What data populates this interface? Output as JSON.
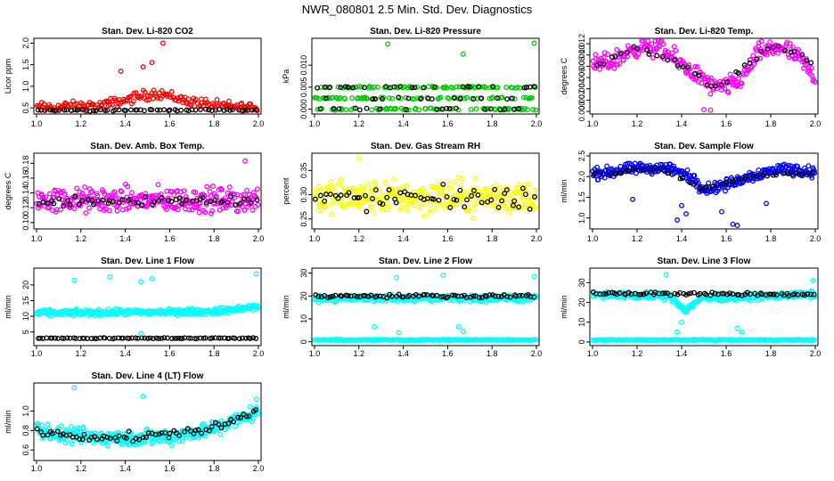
{
  "page_title": "NWR_080801  2.5 Min. Std. Dev. Diagnostics",
  "colors": {
    "red": "#ff0000",
    "green": "#00cc00",
    "magenta": "#ff00ff",
    "yellow": "#ffff00",
    "blue": "#0000ff",
    "cyan": "#00ffff",
    "black": "#000000"
  },
  "chart_data": [
    {
      "type": "scatter",
      "title": "Stan. Dev. Li-820 CO2",
      "ylabel": "Licor ppm",
      "color": "red",
      "xlim": [
        1.0,
        2.0
      ],
      "ylim": [
        0.42,
        2.05
      ],
      "xticks": [
        "1.0",
        "1.2",
        "1.4",
        "1.6",
        "1.8",
        "2.0"
      ],
      "yticks": [
        "0.5",
        "1.0",
        "1.5",
        "2.0"
      ],
      "ytick_values": [
        0.5,
        1.0,
        1.5,
        2.0
      ],
      "series": [
        {
          "name": "all",
          "color": "red",
          "baseline": [
            [
              1.0,
              0.5
            ],
            [
              1.3,
              0.55
            ],
            [
              1.45,
              0.75
            ],
            [
              1.55,
              0.85
            ],
            [
              1.65,
              0.7
            ],
            [
              1.8,
              0.55
            ],
            [
              2.0,
              0.5
            ]
          ],
          "spread": 0.18,
          "n": 180
        },
        {
          "name": "subset",
          "color": "black",
          "baseline": [
            [
              1.0,
              0.45
            ],
            [
              2.0,
              0.45
            ]
          ],
          "spread": 0.03,
          "n": 60
        }
      ],
      "outliers": [
        [
          1.57,
          2.0
        ],
        [
          1.52,
          1.55
        ],
        [
          1.48,
          1.45
        ],
        [
          1.38,
          1.35
        ]
      ]
    },
    {
      "type": "scatter",
      "title": "Stan. Dev. Li-820 Pressure",
      "ylabel": "kPa",
      "color": "green",
      "xlim": [
        1.0,
        2.0
      ],
      "ylim": [
        -0.0005,
        0.0155
      ],
      "xticks": [
        "1.0",
        "1.2",
        "1.4",
        "1.6",
        "1.8",
        "2.0"
      ],
      "yticks": [
        "0.000",
        "0.005",
        "0.010"
      ],
      "ytick_values": [
        0.0,
        0.005,
        0.01
      ],
      "series": [
        {
          "name": "all",
          "color": "green",
          "levels": [
            0.0,
            0.0025,
            0.005
          ],
          "n": 220
        },
        {
          "name": "subset",
          "color": "black",
          "levels": [
            0.0,
            0.0025,
            0.005
          ],
          "n": 60
        }
      ],
      "outliers": [
        [
          1.33,
          0.0148
        ],
        [
          1.67,
          0.0125
        ],
        [
          1.99,
          0.015
        ]
      ]
    },
    {
      "type": "scatter",
      "title": "Stan. Dev. Li-820 Temp.",
      "ylabel": "degrees C",
      "color": "magenta",
      "xlim": [
        1.0,
        2.0
      ],
      "ylim": [
        0.0,
        0.0125
      ],
      "xticks": [
        "1.0",
        "1.2",
        "1.4",
        "1.6",
        "1.8",
        "2.0"
      ],
      "yticks": [
        "0.000",
        "0.002",
        "0.004",
        "0.006",
        "0.008",
        "0.010",
        "0.012"
      ],
      "ytick_values": [
        0.0,
        0.002,
        0.004,
        0.006,
        0.008,
        0.01,
        0.012
      ],
      "series": [
        {
          "name": "all",
          "color": "magenta",
          "baseline": [
            [
              1.0,
              0.008
            ],
            [
              1.1,
              0.009
            ],
            [
              1.2,
              0.0115
            ],
            [
              1.3,
              0.0112
            ],
            [
              1.45,
              0.007
            ],
            [
              1.55,
              0.004
            ],
            [
              1.65,
              0.005
            ],
            [
              1.75,
              0.0105
            ],
            [
              1.85,
              0.0115
            ],
            [
              1.95,
              0.0085
            ],
            [
              2.0,
              0.006
            ]
          ],
          "spread": 0.0025,
          "n": 260
        },
        {
          "name": "subset",
          "color": "black",
          "baseline": [
            [
              1.0,
              0.008
            ],
            [
              1.2,
              0.0115
            ],
            [
              1.45,
              0.007
            ],
            [
              1.55,
              0.004
            ],
            [
              1.8,
              0.0115
            ],
            [
              2.0,
              0.009
            ]
          ],
          "spread": 0.001,
          "n": 40
        }
      ],
      "outliers": [
        [
          1.5,
          0.0003
        ],
        [
          1.53,
          0.0002
        ]
      ]
    },
    {
      "type": "scatter",
      "title": "Stan. Dev. Amb. Box Temp.",
      "ylabel": "degrees C",
      "color": "magenta",
      "xlim": [
        1.0,
        2.0
      ],
      "ylim": [
        0.095,
        0.19
      ],
      "xticks": [
        "1.0",
        "1.2",
        "1.4",
        "1.6",
        "1.8",
        "2.0"
      ],
      "yticks": [
        "0.10",
        "0.12",
        "0.14",
        "0.16",
        "0.18"
      ],
      "ytick_values": [
        0.1,
        0.12,
        0.14,
        0.16,
        0.18
      ],
      "series": [
        {
          "name": "all",
          "color": "magenta",
          "baseline": [
            [
              1.0,
              0.13
            ],
            [
              2.0,
              0.13
            ]
          ],
          "spread": 0.025,
          "n": 300
        },
        {
          "name": "subset",
          "color": "black",
          "baseline": [
            [
              1.0,
              0.13
            ],
            [
              2.0,
              0.13
            ]
          ],
          "spread": 0.012,
          "n": 55
        }
      ],
      "outliers": [
        [
          1.94,
          0.183
        ]
      ]
    },
    {
      "type": "scatter",
      "title": "Stan. Dev. Gas Stream RH",
      "ylabel": "percent",
      "color": "yellow",
      "xlim": [
        1.0,
        2.0
      ],
      "ylim": [
        0.235,
        0.38
      ],
      "xticks": [
        "1.0",
        "1.2",
        "1.4",
        "1.6",
        "1.8",
        "2.0"
      ],
      "yticks": [
        "0.25",
        "0.30",
        "0.35"
      ],
      "ytick_values": [
        0.25,
        0.3,
        0.35
      ],
      "series": [
        {
          "name": "all",
          "color": "yellow",
          "baseline": [
            [
              1.0,
              0.295
            ],
            [
              2.0,
              0.295
            ]
          ],
          "spread": 0.05,
          "n": 320
        },
        {
          "name": "subset",
          "color": "black",
          "baseline": [
            [
              1.0,
              0.29
            ],
            [
              2.0,
              0.295
            ]
          ],
          "spread": 0.035,
          "n": 60
        }
      ],
      "outliers": [
        [
          1.2,
          0.375
        ]
      ]
    },
    {
      "type": "scatter",
      "title": "Stan. Dev. Sample Flow",
      "ylabel": "ml/min",
      "color": "blue",
      "xlim": [
        1.0,
        2.0
      ],
      "ylim": [
        0.8,
        2.5
      ],
      "xticks": [
        "1.0",
        "1.2",
        "1.4",
        "1.6",
        "1.8",
        "2.0"
      ],
      "yticks": [
        "1.0",
        "1.5",
        "2.0",
        "2.5"
      ],
      "ytick_values": [
        1.0,
        1.5,
        2.0,
        2.5
      ],
      "series": [
        {
          "name": "all",
          "color": "blue",
          "baseline": [
            [
              1.0,
              2.05
            ],
            [
              1.2,
              2.2
            ],
            [
              1.35,
              2.2
            ],
            [
              1.45,
              1.95
            ],
            [
              1.5,
              1.7
            ],
            [
              1.6,
              1.8
            ],
            [
              1.7,
              2.0
            ],
            [
              1.85,
              2.2
            ],
            [
              2.0,
              2.1
            ]
          ],
          "spread": 0.2,
          "n": 320
        },
        {
          "name": "subset",
          "color": "black",
          "baseline": [
            [
              1.0,
              2.05
            ],
            [
              1.3,
              2.2
            ],
            [
              1.5,
              1.7
            ],
            [
              1.7,
              2.0
            ],
            [
              2.0,
              2.1
            ]
          ],
          "spread": 0.06,
          "n": 45
        }
      ],
      "outliers": [
        [
          1.18,
          1.45
        ],
        [
          1.38,
          0.95
        ],
        [
          1.4,
          1.3
        ],
        [
          1.42,
          1.1
        ],
        [
          1.58,
          1.15
        ],
        [
          1.63,
          0.85
        ],
        [
          1.65,
          0.82
        ],
        [
          1.78,
          1.35
        ]
      ]
    },
    {
      "type": "scatter",
      "title": "Stan. Dev. Line 1 Flow",
      "ylabel": "ml/min",
      "color": "cyan",
      "xlim": [
        1.0,
        2.0
      ],
      "ylim": [
        1.5,
        24.5
      ],
      "xticks": [
        "1.0",
        "1.2",
        "1.4",
        "1.6",
        "1.8",
        "2.0"
      ],
      "yticks": [
        "5",
        "10",
        "15",
        "20"
      ],
      "ytick_values": [
        5,
        10,
        15,
        20
      ],
      "series": [
        {
          "name": "all",
          "color": "cyan",
          "baseline": [
            [
              1.0,
              11.0
            ],
            [
              1.8,
              11.5
            ],
            [
              2.0,
              13.0
            ]
          ],
          "spread": 1.4,
          "n": 350
        },
        {
          "name": "subset",
          "color": "black",
          "baseline": [
            [
              1.0,
              3.0
            ],
            [
              2.0,
              3.0
            ]
          ],
          "spread": 0.25,
          "n": 75
        }
      ],
      "outliers": [
        [
          1.17,
          21.5
        ],
        [
          1.33,
          22.5
        ],
        [
          1.47,
          21.0
        ],
        [
          1.52,
          22.0
        ],
        [
          1.99,
          23.5
        ],
        [
          1.47,
          4.5
        ]
      ]
    },
    {
      "type": "scatter",
      "title": "Stan. Dev. Line 2 Flow",
      "ylabel": "ml/min",
      "color": "cyan",
      "xlim": [
        1.0,
        2.0
      ],
      "ylim": [
        -0.5,
        31
      ],
      "xticks": [
        "1.0",
        "1.2",
        "1.4",
        "1.6",
        "1.8",
        "2.0"
      ],
      "yticks": [
        "0",
        "10",
        "20",
        "30"
      ],
      "ytick_values": [
        0,
        10,
        20,
        30
      ],
      "series": [
        {
          "name": "all",
          "color": "cyan",
          "baseline": [
            [
              1.0,
              19.0
            ],
            [
              2.0,
              19.0
            ]
          ],
          "spread": 2.2,
          "n": 300
        },
        {
          "name": "floor",
          "color": "cyan",
          "baseline": [
            [
              1.0,
              0.8
            ],
            [
              2.0,
              0.8
            ]
          ],
          "spread": 0.4,
          "n": 200
        },
        {
          "name": "subset",
          "color": "black",
          "baseline": [
            [
              1.0,
              20.0
            ],
            [
              2.0,
              20.0
            ]
          ],
          "spread": 1.0,
          "n": 75
        }
      ],
      "outliers": [
        [
          1.37,
          28.0
        ],
        [
          1.58,
          29.0
        ],
        [
          1.99,
          28.5
        ],
        [
          1.38,
          4.0
        ],
        [
          1.65,
          6.5
        ],
        [
          1.67,
          4.5
        ],
        [
          1.27,
          6.5
        ]
      ]
    },
    {
      "type": "scatter",
      "title": "Stan. Dev. Line 3 Flow",
      "ylabel": "ml/min",
      "color": "cyan",
      "xlim": [
        1.0,
        2.0
      ],
      "ylim": [
        -0.5,
        36
      ],
      "xticks": [
        "1.0",
        "1.2",
        "1.4",
        "1.6",
        "1.8",
        "2.0"
      ],
      "yticks": [
        "0",
        "10",
        "20",
        "30"
      ],
      "ytick_values": [
        0,
        10,
        20,
        30
      ],
      "series": [
        {
          "name": "all",
          "color": "cyan",
          "baseline": [
            [
              1.0,
              24.0
            ],
            [
              1.35,
              23.0
            ],
            [
              1.42,
              16.0
            ],
            [
              1.48,
              22.0
            ],
            [
              2.0,
              24.0
            ]
          ],
          "spread": 2.5,
          "n": 300
        },
        {
          "name": "floor",
          "color": "cyan",
          "baseline": [
            [
              1.0,
              1.0
            ],
            [
              2.0,
              1.0
            ]
          ],
          "spread": 0.4,
          "n": 200
        },
        {
          "name": "subset",
          "color": "black",
          "baseline": [
            [
              1.0,
              24.5
            ],
            [
              2.0,
              24.0
            ]
          ],
          "spread": 1.2,
          "n": 75
        }
      ],
      "outliers": [
        [
          1.33,
          34.0
        ],
        [
          1.99,
          31.0
        ],
        [
          1.38,
          5.0
        ],
        [
          1.65,
          7.0
        ],
        [
          1.67,
          5.0
        ],
        [
          1.4,
          10.0
        ]
      ]
    },
    {
      "type": "scatter",
      "title": "Stan. Dev. Line 4 (LT) Flow",
      "ylabel": "ml/min",
      "color": "cyan",
      "xlim": [
        1.0,
        2.0
      ],
      "ylim": [
        0.52,
        1.26
      ],
      "xticks": [
        "1.0",
        "1.2",
        "1.4",
        "1.6",
        "1.8",
        "2.0"
      ],
      "yticks": [
        "0.6",
        "0.8",
        "1.0"
      ],
      "ytick_values": [
        0.6,
        0.8,
        1.0
      ],
      "series": [
        {
          "name": "all",
          "color": "cyan",
          "baseline": [
            [
              1.0,
              0.82
            ],
            [
              1.1,
              0.75
            ],
            [
              1.4,
              0.72
            ],
            [
              1.6,
              0.74
            ],
            [
              1.8,
              0.82
            ],
            [
              1.95,
              0.95
            ],
            [
              2.0,
              1.0
            ]
          ],
          "spread": 0.12,
          "n": 340
        },
        {
          "name": "subset",
          "color": "black",
          "baseline": [
            [
              1.0,
              0.78
            ],
            [
              1.4,
              0.72
            ],
            [
              1.8,
              0.82
            ],
            [
              2.0,
              1.0
            ]
          ],
          "spread": 0.07,
          "n": 70
        }
      ],
      "outliers": [
        [
          1.17,
          1.24
        ],
        [
          1.48,
          1.15
        ],
        [
          1.99,
          1.12
        ]
      ]
    }
  ]
}
